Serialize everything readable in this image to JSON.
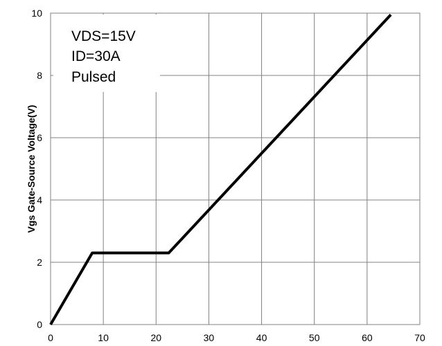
{
  "chart_data": {
    "type": "line",
    "title": "",
    "xlabel": "",
    "ylabel": "Vgs Gate-Source Voltage(V)",
    "xlim": [
      0,
      70
    ],
    "ylim": [
      0,
      10
    ],
    "xticks": [
      0,
      10,
      20,
      30,
      40,
      50,
      60,
      70
    ],
    "yticks": [
      0,
      2,
      4,
      6,
      8,
      10
    ],
    "grid": true,
    "series": [
      {
        "x": [
          0,
          7.9,
          22.4,
          64.5
        ],
        "y": [
          0,
          2.3,
          2.3,
          9.95
        ],
        "color": "#000000"
      }
    ],
    "annotations": [
      "VDS=15V",
      "ID=30A",
      "Pulsed"
    ]
  }
}
